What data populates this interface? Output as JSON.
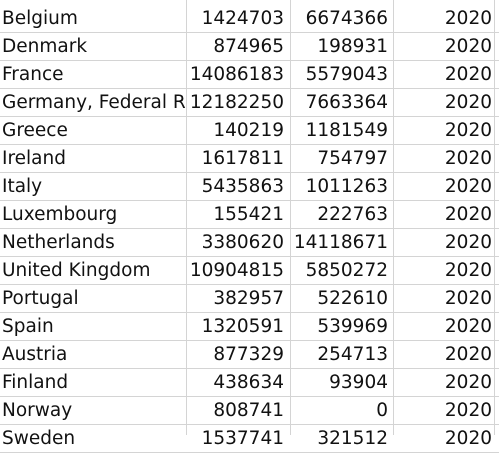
{
  "rows": [
    {
      "country": "Belgium",
      "a": "1424703",
      "b": "6674366",
      "year": "2020"
    },
    {
      "country": "Denmark",
      "a": "874965",
      "b": "198931",
      "year": "2020"
    },
    {
      "country": "France",
      "a": "14086183",
      "b": "5579043",
      "year": "2020"
    },
    {
      "country": "Germany, Federal R",
      "a": "12182250",
      "b": "7663364",
      "year": "2020"
    },
    {
      "country": "Greece",
      "a": "140219",
      "b": "1181549",
      "year": "2020"
    },
    {
      "country": "Ireland",
      "a": "1617811",
      "b": "754797",
      "year": "2020"
    },
    {
      "country": "Italy",
      "a": "5435863",
      "b": "1011263",
      "year": "2020"
    },
    {
      "country": "Luxembourg",
      "a": "155421",
      "b": "222763",
      "year": "2020"
    },
    {
      "country": "Netherlands",
      "a": "3380620",
      "b": "14118671",
      "year": "2020"
    },
    {
      "country": "United Kingdom",
      "a": "10904815",
      "b": "5850272",
      "year": "2020"
    },
    {
      "country": "Portugal",
      "a": "382957",
      "b": "522610",
      "year": "2020"
    },
    {
      "country": "Spain",
      "a": "1320591",
      "b": "539969",
      "year": "2020"
    },
    {
      "country": "Austria",
      "a": "877329",
      "b": "254713",
      "year": "2020"
    },
    {
      "country": "Finland",
      "a": "438634",
      "b": "93904",
      "year": "2020"
    },
    {
      "country": "Norway",
      "a": "808741",
      "b": "0",
      "year": "2020"
    },
    {
      "country": "Sweden",
      "a": "1537741",
      "b": "321512",
      "year": "2020"
    }
  ]
}
